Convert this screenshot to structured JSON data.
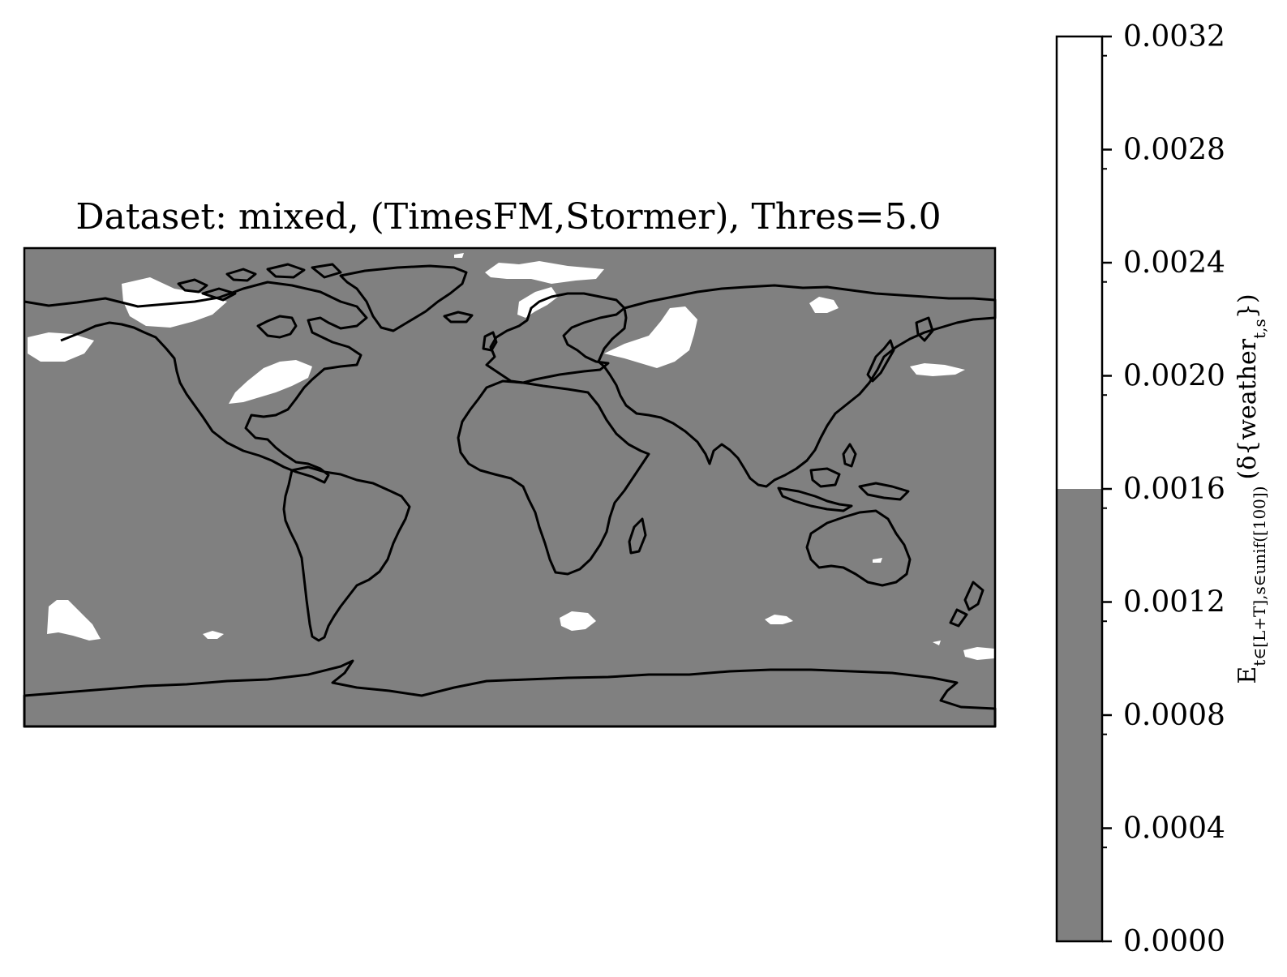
{
  "chart_data": {
    "type": "heatmap",
    "title": "Dataset: mixed, (TimesFM,Stormer), Thres=5.0",
    "map": {
      "projection": "plate-carree",
      "lon_range": [
        -180,
        180
      ],
      "lat_range": [
        -90,
        90
      ],
      "background_value": 0.0012,
      "background_color": "#808080",
      "highlight_color": "#ffffff",
      "highlight_regions_approx": [
        {
          "label": "Alaska / western Canada",
          "lon": -125,
          "lat": 68
        },
        {
          "label": "Northern Pacific near Alaska",
          "lon": -170,
          "lat": 57
        },
        {
          "label": "Eastern United States",
          "lon": -87,
          "lat": 38
        },
        {
          "label": "Svalbard / Barents Sea",
          "lon": 15,
          "lat": 80
        },
        {
          "label": "Scandinavia",
          "lon": 20,
          "lat": 65
        },
        {
          "label": "Western Russia / Kazakhstan",
          "lon": 55,
          "lat": 55
        },
        {
          "label": "Northern Siberia",
          "lon": 118,
          "lat": 72
        },
        {
          "label": "North Pacific east of Japan",
          "lon": 155,
          "lat": 40
        },
        {
          "label": "Southeast Pacific",
          "lon": -165,
          "lat": -40
        },
        {
          "label": "South Atlantic",
          "lon": -100,
          "lat": -48
        },
        {
          "label": "Southern Indian Ocean",
          "lon": 35,
          "lat": -45
        },
        {
          "label": "Southern Indian Ocean east",
          "lon": 100,
          "lat": -45
        },
        {
          "label": "Near New Zealand",
          "lon": 175,
          "lat": -50
        }
      ]
    },
    "colorbar": {
      "label_text": "E_{t∈[L+T],s∈unif([100])} (δ{weather_{t,s}})",
      "ticks": [
        "0.0000",
        "0.0004",
        "0.0008",
        "0.0012",
        "0.0016",
        "0.0020",
        "0.0024",
        "0.0028",
        "0.0032"
      ],
      "range": [
        0.0,
        0.0032
      ],
      "bins": [
        {
          "from": 0.0,
          "to": 0.0016,
          "color": "#808080"
        },
        {
          "from": 0.0016,
          "to": 0.0032,
          "color": "#ffffff"
        }
      ]
    }
  }
}
